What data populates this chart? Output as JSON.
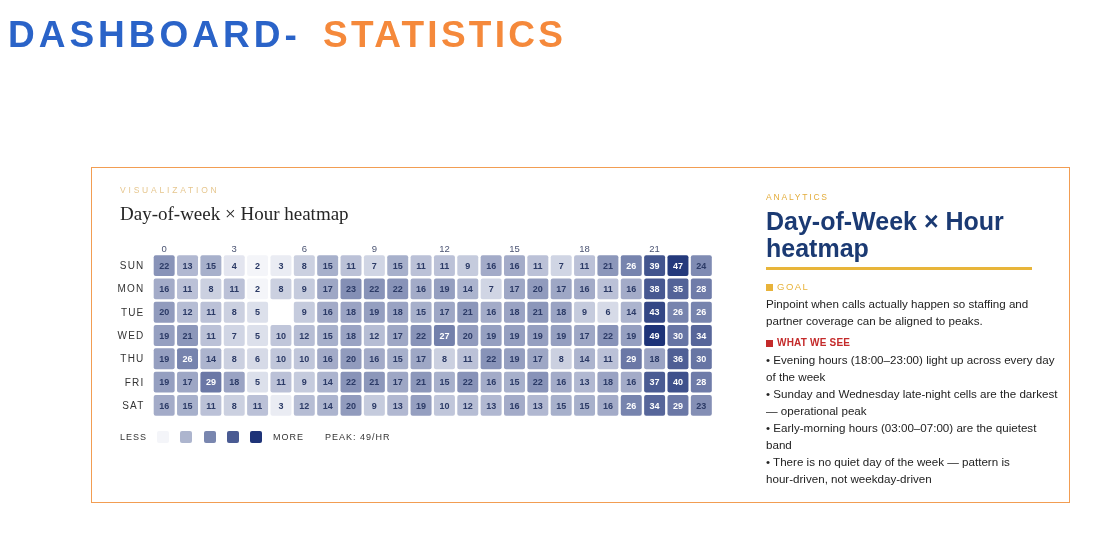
{
  "chart_data": [
    {
      "type": "heatmap",
      "title": "Day-of-week × Hour heatmap",
      "subtitle": "VISUALIZATION",
      "categories": [
        "0",
        null,
        null,
        "3",
        null,
        null,
        "6",
        null,
        null,
        "9",
        null,
        null,
        "12",
        null,
        null,
        "15",
        null,
        null,
        "18",
        null,
        null,
        "21",
        null,
        null
      ],
      "y_categories": [
        "SUN",
        "MON",
        "TUE",
        "WED",
        "THU",
        "FRI",
        "SAT"
      ],
      "cells": [
        [
          22,
          13,
          15,
          4,
          2,
          3,
          8,
          15,
          11,
          7,
          15,
          11,
          11,
          9,
          16,
          16,
          11,
          7,
          11,
          21,
          26,
          39,
          47,
          24
        ],
        [
          16,
          11,
          8,
          11,
          2,
          8,
          9,
          17,
          23,
          22,
          22,
          16,
          19,
          14,
          7,
          17,
          20,
          17,
          16,
          11,
          16,
          38,
          35,
          28
        ],
        [
          20,
          12,
          11,
          8,
          5,
          null,
          9,
          16,
          18,
          19,
          18,
          15,
          17,
          21,
          16,
          18,
          21,
          18,
          9,
          6,
          14,
          43,
          26,
          26
        ],
        [
          19,
          21,
          11,
          7,
          5,
          10,
          12,
          15,
          18,
          12,
          17,
          22,
          27,
          20,
          19,
          19,
          19,
          19,
          17,
          22,
          19,
          49,
          30,
          34
        ],
        [
          19,
          26,
          14,
          8,
          6,
          10,
          10,
          16,
          20,
          16,
          15,
          17,
          8,
          11,
          22,
          19,
          17,
          8,
          14,
          11,
          29,
          18,
          36,
          30
        ],
        [
          19,
          17,
          29,
          18,
          5,
          11,
          9,
          14,
          22,
          21,
          17,
          21,
          15,
          22,
          16,
          15,
          22,
          16,
          13,
          18,
          16,
          37,
          40,
          28
        ],
        [
          16,
          15,
          11,
          8,
          11,
          3,
          12,
          14,
          20,
          9,
          13,
          19,
          10,
          12,
          13,
          16,
          13,
          15,
          15,
          16,
          26,
          34,
          29,
          23
        ]
      ],
      "color": "#1e3378",
      "data_labels": true,
      "annotations": [
        "DASHBOARD-",
        "STATISTICS",
        "LESS",
        "MORE",
        "PEAK: 49/HR"
      ]
    },
    {
      "type": "other",
      "subtitle": "ANALYTICS",
      "title": "Day-of-Week × Hour heatmap",
      "annotations": [
        "GOAL",
        "Pinpoint when calls actually happen so staffing and partner coverage can be aligned to peaks.",
        "WHAT WE SEE",
        "• Evening hours (18:00–23:00) light up across every day of the week",
        "• Sunday and Wednesday late-night cells are the darkest — operational peak",
        "• Early-morning hours (03:00–07:00) are the quietest band",
        "• There is no quiet day of the week — pattern is hour-driven, not weekday-driven"
      ]
    }
  ]
}
